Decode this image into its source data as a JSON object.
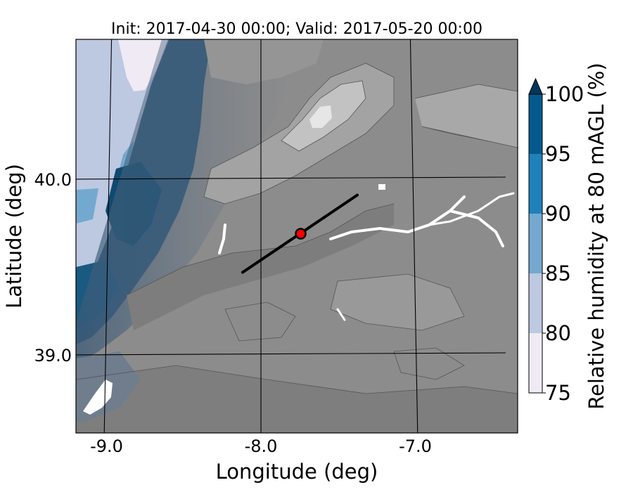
{
  "title": "Init: 2017-04-30 00:00; Valid: 2017-05-20 00:00",
  "xlabel": "Longitude (deg)",
  "ylabel": "Latitude (deg)",
  "x_ticks": [
    {
      "value": -9.0,
      "label": "-9.0"
    },
    {
      "value": -8.0,
      "label": "-8.0"
    },
    {
      "value": -7.0,
      "label": "-7.0"
    }
  ],
  "y_ticks": [
    {
      "value": 40.0,
      "label": "40.0"
    },
    {
      "value": 39.0,
      "label": "39.0"
    }
  ],
  "colorbar": {
    "label": "Relative humidity at 80 mAGL (%)",
    "levels": [
      {
        "value": 75,
        "label": "75"
      },
      {
        "value": 80,
        "label": "80"
      },
      {
        "value": 85,
        "label": "85"
      },
      {
        "value": 90,
        "label": "90"
      },
      {
        "value": 95,
        "label": "95"
      },
      {
        "value": 100,
        "label": "100"
      }
    ],
    "colors": [
      "#efeaf4",
      "#bdc8e1",
      "#74a9cf",
      "#1f81b9",
      "#045a8d"
    ],
    "extend_color": "#023858"
  },
  "terrain_colors": {
    "base": "#8c8c8c",
    "low": "#7a7a7a",
    "mid": "#a3a3a3",
    "high": "#c2c2c2",
    "peak": "#e6e6e6",
    "water": "#ffffff",
    "humid_overlay": "#5b6c82"
  },
  "transect": {
    "start": {
      "lon": -8.12,
      "lat": 39.47
    },
    "end": {
      "lon": -7.37,
      "lat": 39.91
    }
  },
  "site": {
    "lon": -7.74,
    "lat": 39.69,
    "color": "#ff0000"
  }
}
